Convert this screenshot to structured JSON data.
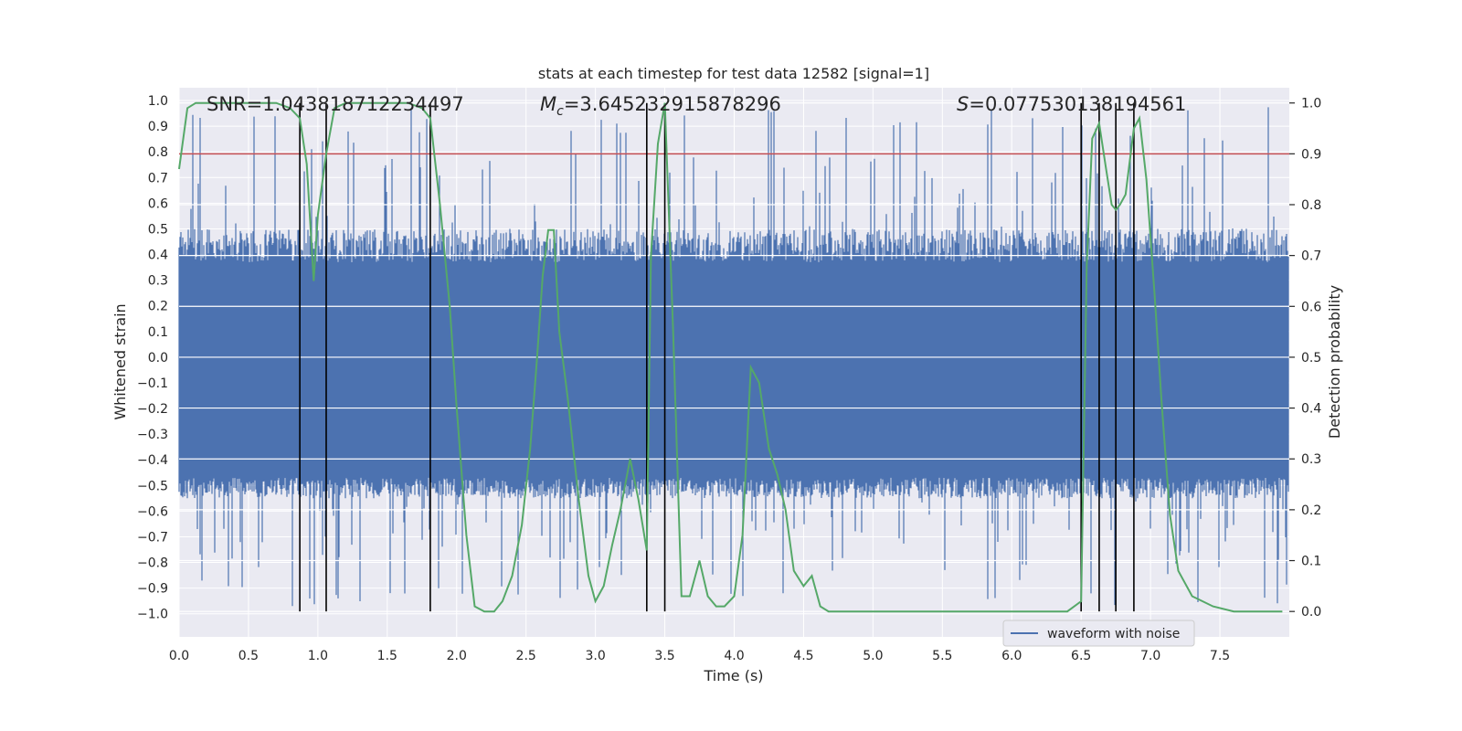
{
  "chart_data": {
    "type": "line",
    "title": "stats at each timestep for test data 12582 [signal=1]",
    "xlabel": "Time (s)",
    "ylabel_left": "Whitened strain",
    "ylabel_right": "Detection probability",
    "xlim": [
      0.0,
      8.0
    ],
    "ylim_left": [
      -1.09,
      1.05
    ],
    "ylim_right": [
      -0.05,
      1.03
    ],
    "x_ticks": [
      "0.0",
      "0.5",
      "1.0",
      "1.5",
      "2.0",
      "2.5",
      "3.0",
      "3.5",
      "4.0",
      "4.5",
      "5.0",
      "5.5",
      "6.0",
      "6.5",
      "7.0",
      "7.5"
    ],
    "y_ticks_left": [
      "1.0",
      "0.9",
      "0.8",
      "0.7",
      "0.6",
      "0.5",
      "0.4",
      "0.3",
      "0.2",
      "0.1",
      "0.0",
      "-0.1",
      "-0.2",
      "-0.3",
      "-0.4",
      "-0.5",
      "-0.6",
      "-0.7",
      "-0.8",
      "-0.9",
      "-1.0"
    ],
    "y_ticks_right": [
      "1.0",
      "0.9",
      "0.8",
      "0.7",
      "0.6",
      "0.5",
      "0.4",
      "0.3",
      "0.2",
      "0.1",
      "0.0"
    ],
    "threshold": 0.9,
    "annotations": {
      "snr_label": "SNR=1.043818712234497",
      "mc_symbol": "M",
      "mc_sub": "c",
      "mc_value": "=3.645232915878296",
      "s_symbol": "S",
      "s_value": "=0.07753013819456​1"
    },
    "legend": {
      "label": "waveform with noise",
      "position": "bottom-right"
    },
    "event_lines_x": [
      0.87,
      1.06,
      1.81,
      3.37,
      3.5,
      6.5,
      6.63,
      6.75,
      6.88
    ],
    "series": [
      {
        "name": "Detection probability",
        "color": "#55a868",
        "x": [
          0.0,
          0.06,
          0.12,
          0.2,
          0.3,
          0.45,
          0.6,
          0.7,
          0.8,
          0.87,
          0.92,
          0.97,
          1.0,
          1.06,
          1.12,
          1.2,
          1.35,
          1.5,
          1.65,
          1.75,
          1.81,
          1.88,
          1.95,
          2.0,
          2.07,
          2.13,
          2.2,
          2.27,
          2.33,
          2.4,
          2.47,
          2.53,
          2.58,
          2.62,
          2.66,
          2.7,
          2.74,
          2.8,
          2.88,
          2.95,
          3.0,
          3.06,
          3.12,
          3.18,
          3.25,
          3.31,
          3.37,
          3.4,
          3.45,
          3.5,
          3.56,
          3.62,
          3.68,
          3.75,
          3.81,
          3.87,
          3.93,
          4.0,
          4.06,
          4.12,
          4.18,
          4.25,
          4.31,
          4.37,
          4.43,
          4.5,
          4.56,
          4.62,
          4.68,
          4.75,
          4.85,
          5.0,
          5.2,
          5.4,
          5.6,
          5.8,
          6.0,
          6.2,
          6.4,
          6.5,
          6.54,
          6.58,
          6.63,
          6.68,
          6.72,
          6.75,
          6.78,
          6.82,
          6.88,
          6.92,
          6.97,
          7.03,
          7.08,
          7.14,
          7.2,
          7.3,
          7.45,
          7.6,
          7.75,
          7.95
        ],
        "y": [
          0.87,
          0.99,
          1.0,
          1.0,
          1.0,
          1.0,
          1.0,
          1.0,
          0.99,
          0.97,
          0.88,
          0.65,
          0.78,
          0.9,
          0.99,
          1.0,
          1.0,
          1.0,
          1.0,
          0.99,
          0.97,
          0.8,
          0.6,
          0.4,
          0.15,
          0.01,
          0.0,
          0.0,
          0.02,
          0.07,
          0.17,
          0.32,
          0.5,
          0.66,
          0.75,
          0.75,
          0.55,
          0.42,
          0.22,
          0.07,
          0.02,
          0.05,
          0.13,
          0.2,
          0.3,
          0.22,
          0.12,
          0.7,
          0.92,
          1.0,
          0.55,
          0.03,
          0.03,
          0.1,
          0.03,
          0.01,
          0.01,
          0.03,
          0.15,
          0.48,
          0.45,
          0.32,
          0.27,
          0.2,
          0.08,
          0.05,
          0.07,
          0.01,
          0.0,
          0.0,
          0.0,
          0.0,
          0.0,
          0.0,
          0.0,
          0.0,
          0.0,
          0.0,
          0.0,
          0.02,
          0.68,
          0.93,
          0.96,
          0.87,
          0.8,
          0.79,
          0.8,
          0.82,
          0.95,
          0.97,
          0.85,
          0.62,
          0.41,
          0.19,
          0.08,
          0.03,
          0.01,
          0.0,
          0.0,
          0.0
        ]
      },
      {
        "name": "waveform with noise",
        "color": "#4c72b0",
        "band_core": [
          -0.47,
          0.37
        ],
        "band_outer": [
          -0.55,
          0.5
        ],
        "extremes": [
          -1.0,
          1.0
        ]
      }
    ]
  }
}
